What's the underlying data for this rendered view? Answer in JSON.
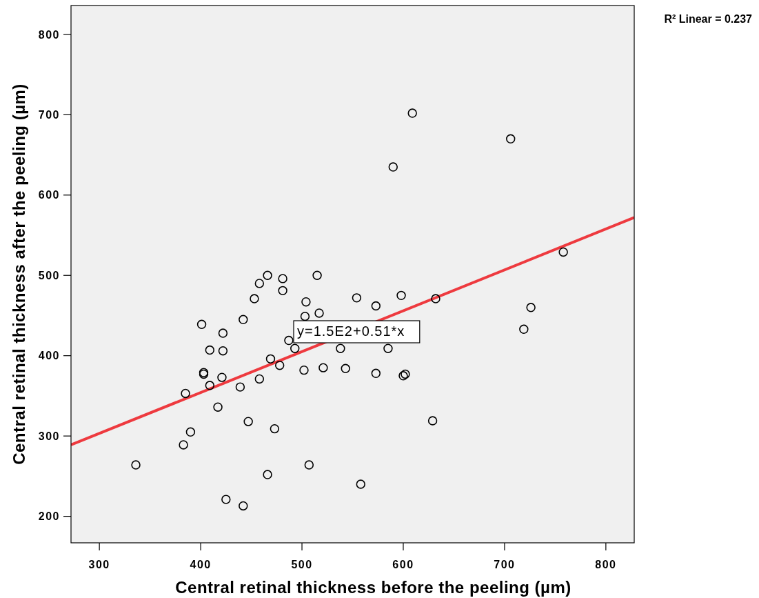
{
  "chart_data": {
    "type": "scatter",
    "xlabel": "Central retinal thickness before the peeling (µm)",
    "ylabel": "Central retinal thickness after the peeling (µm)",
    "xlim": [
      272,
      828
    ],
    "ylim": [
      167,
      836
    ],
    "xticks": [
      300,
      400,
      500,
      600,
      700,
      800
    ],
    "yticks": [
      200,
      300,
      400,
      500,
      600,
      700,
      800
    ],
    "grid": false,
    "marker": "circle",
    "annotations": [
      "R² Linear = 0.237",
      "y=1.5E2+0.51*x"
    ],
    "series": [
      {
        "color": "#000000",
        "x": [
          336,
          383,
          385,
          390,
          401,
          403,
          403,
          409,
          409,
          417,
          421,
          422,
          422,
          425,
          439,
          442,
          442,
          447,
          453,
          458,
          458,
          466,
          466,
          469,
          473,
          478,
          481,
          481,
          487,
          493,
          502,
          503,
          504,
          507,
          517,
          515,
          521,
          538,
          543,
          554,
          558,
          573,
          573,
          585,
          590,
          598,
          600,
          602,
          609,
          629,
          632,
          706,
          719,
          726,
          758
        ],
        "values": [
          264,
          289,
          353,
          305,
          439,
          379,
          377,
          363,
          407,
          336,
          373,
          406,
          428,
          221,
          361,
          213,
          445,
          318,
          471,
          490,
          371,
          500,
          252,
          396,
          309,
          388,
          496,
          481,
          419,
          409,
          382,
          449,
          467,
          264,
          453,
          500,
          385,
          409,
          384,
          472,
          240,
          378,
          462,
          409,
          635,
          475,
          375,
          377,
          702,
          319,
          471,
          670,
          433,
          460,
          529
        ]
      },
      {
        "type": "line",
        "marker": "none",
        "color": "#ee3a3f",
        "line_style": "solid",
        "x": [
          272,
          828
        ],
        "values": [
          289,
          572
        ]
      }
    ]
  }
}
